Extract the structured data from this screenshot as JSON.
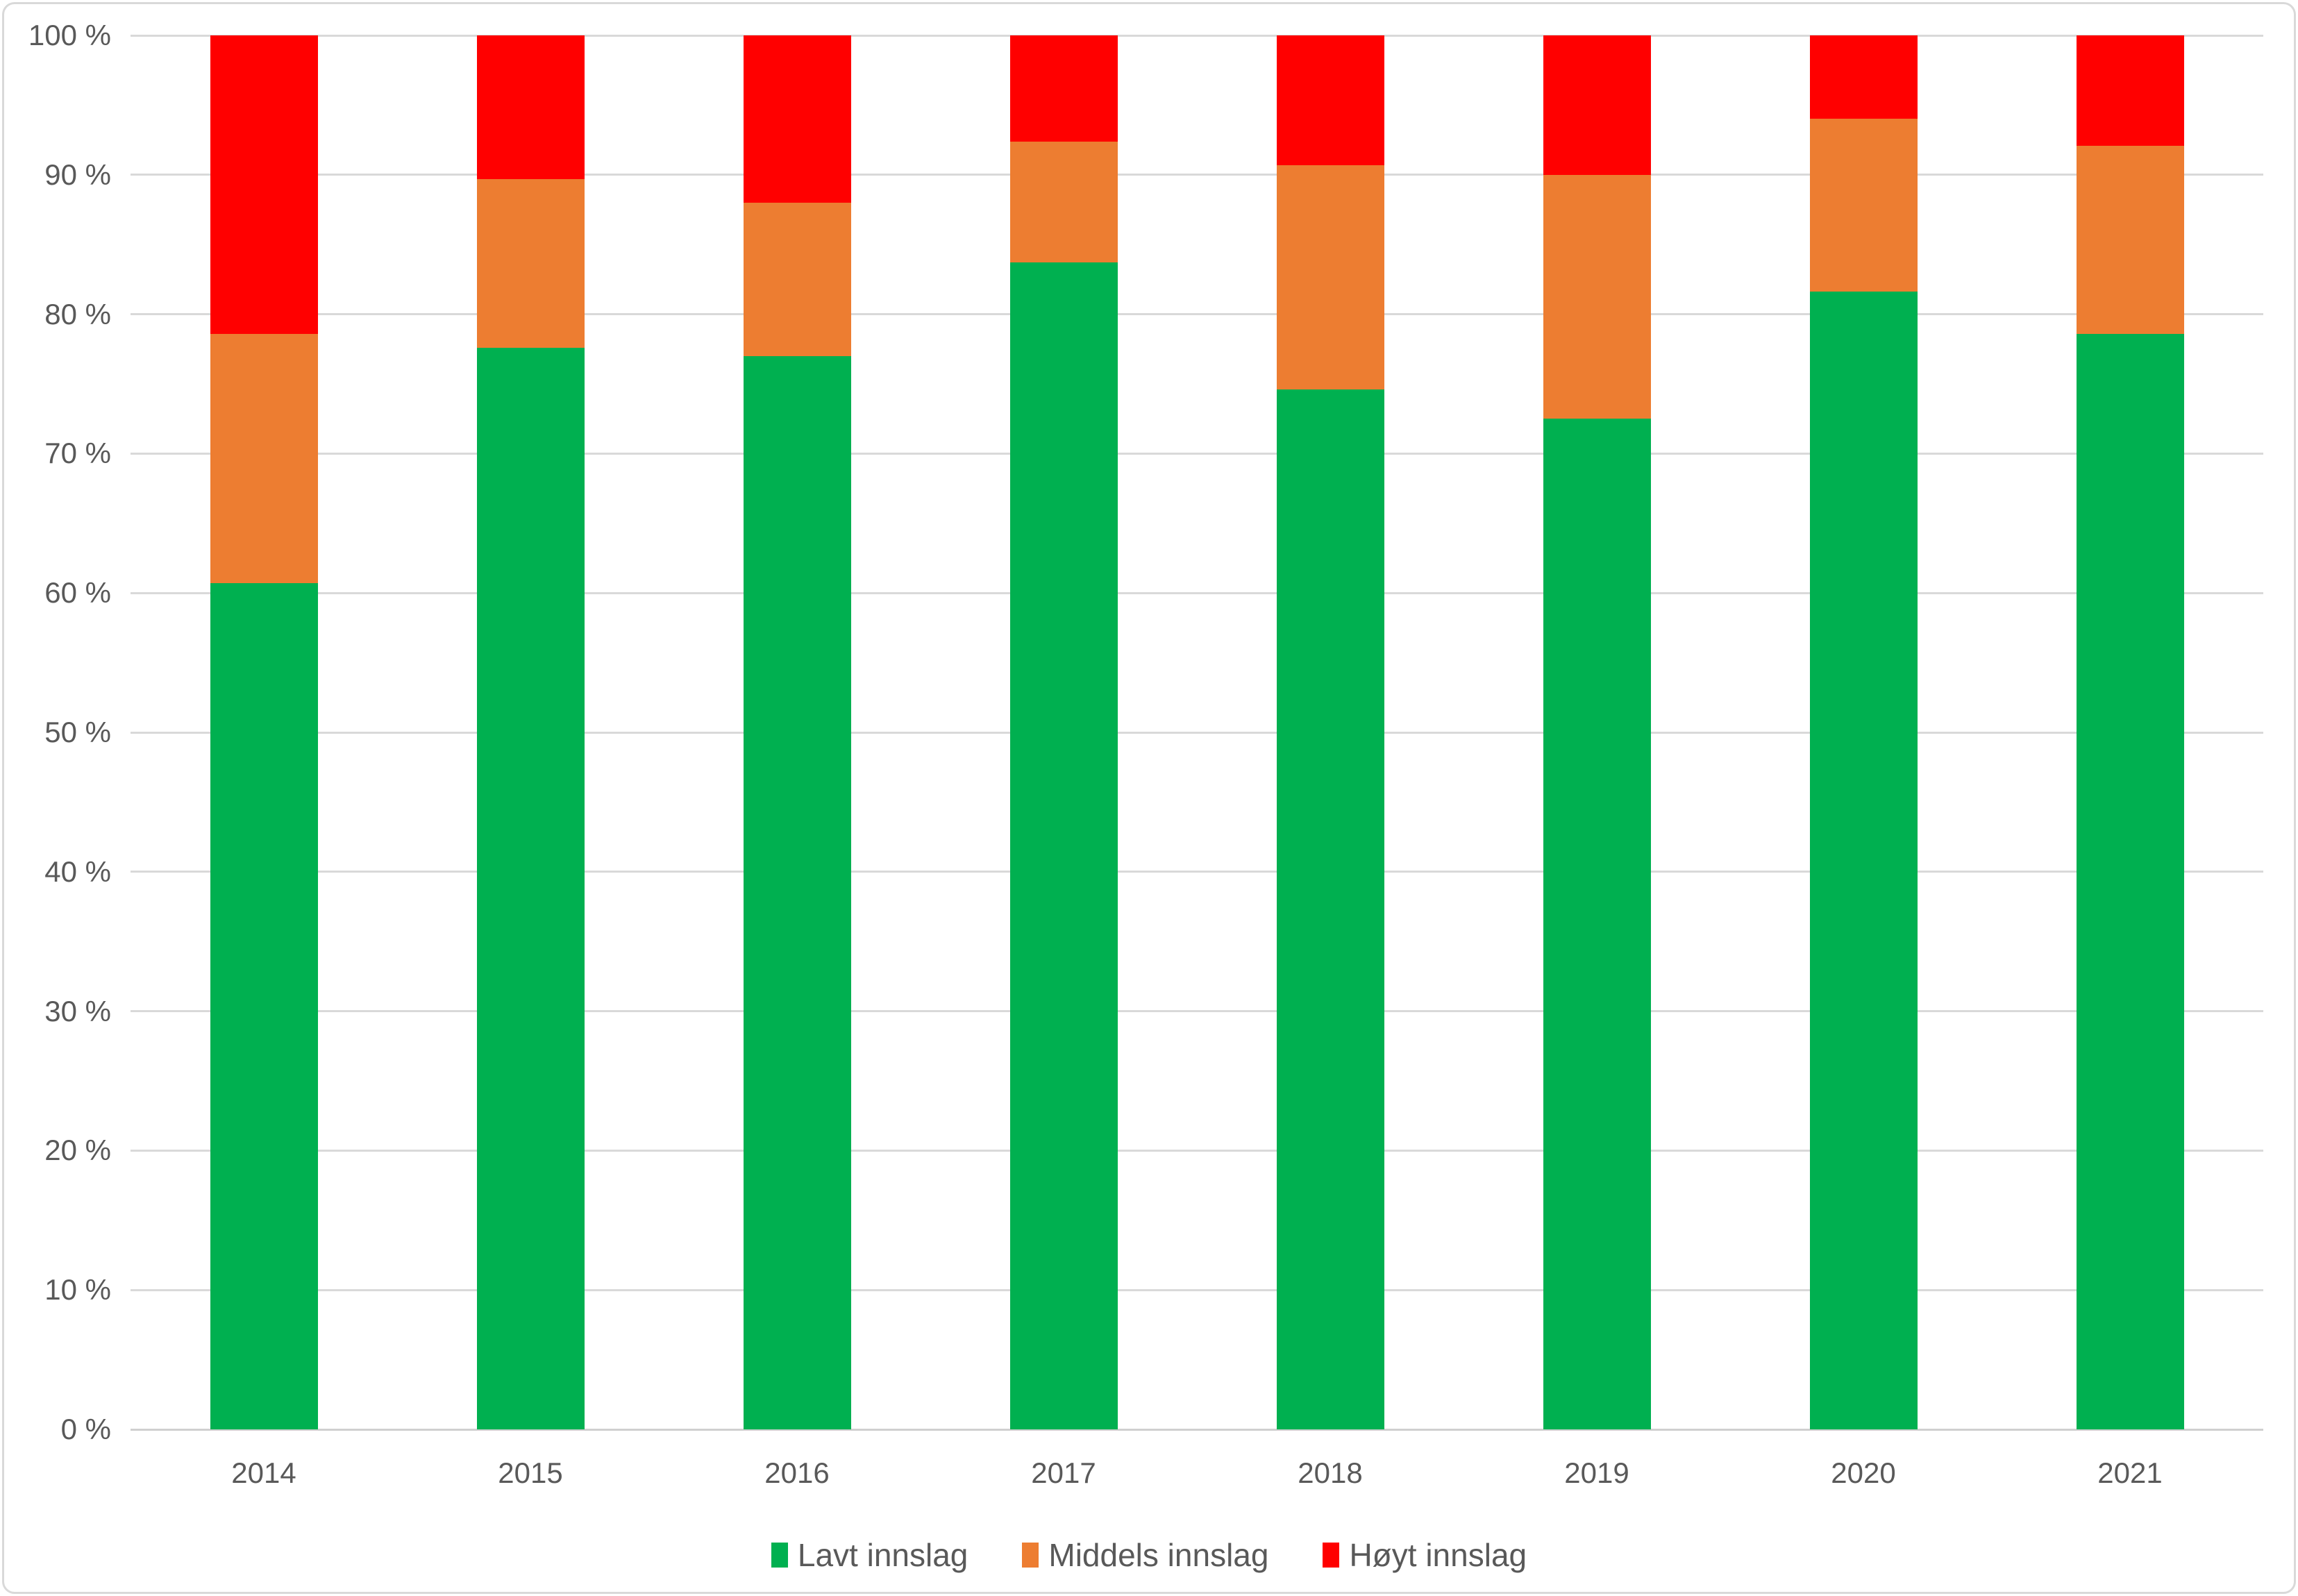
{
  "chart_data": {
    "type": "bar",
    "variant": "stacked-100-percent-column",
    "title": "",
    "xlabel": "",
    "ylabel": "",
    "grid": true,
    "legend_position": "bottom",
    "categories": [
      "2014",
      "2015",
      "2016",
      "2017",
      "2018",
      "2019",
      "2020",
      "2021"
    ],
    "series": [
      {
        "name": "Lavt innslag",
        "color": "#00B050",
        "values": [
          60.7,
          77.6,
          77.0,
          83.7,
          74.6,
          72.5,
          81.6,
          78.6
        ]
      },
      {
        "name": "Middels innslag",
        "color": "#ED7D31",
        "values": [
          17.9,
          12.1,
          11.0,
          8.7,
          16.1,
          17.5,
          12.4,
          13.5
        ]
      },
      {
        "name": "Høyt innslag",
        "color": "#FF0000",
        "values": [
          21.4,
          10.3,
          12.0,
          7.6,
          9.3,
          10.0,
          6.0,
          7.9
        ]
      }
    ],
    "y_axis": {
      "min": 0,
      "max": 100,
      "step": 10,
      "tick_labels": [
        "0 %",
        "10 %",
        "20 %",
        "30 %",
        "40 %",
        "50 %",
        "60 %",
        "70 %",
        "80 %",
        "90 %",
        "100 %"
      ]
    }
  },
  "style_colors": {
    "gridline": "#D9D9D9",
    "axis_text": "#595959",
    "chart_border": "#D9D9D9",
    "background": "#FFFFFF"
  }
}
